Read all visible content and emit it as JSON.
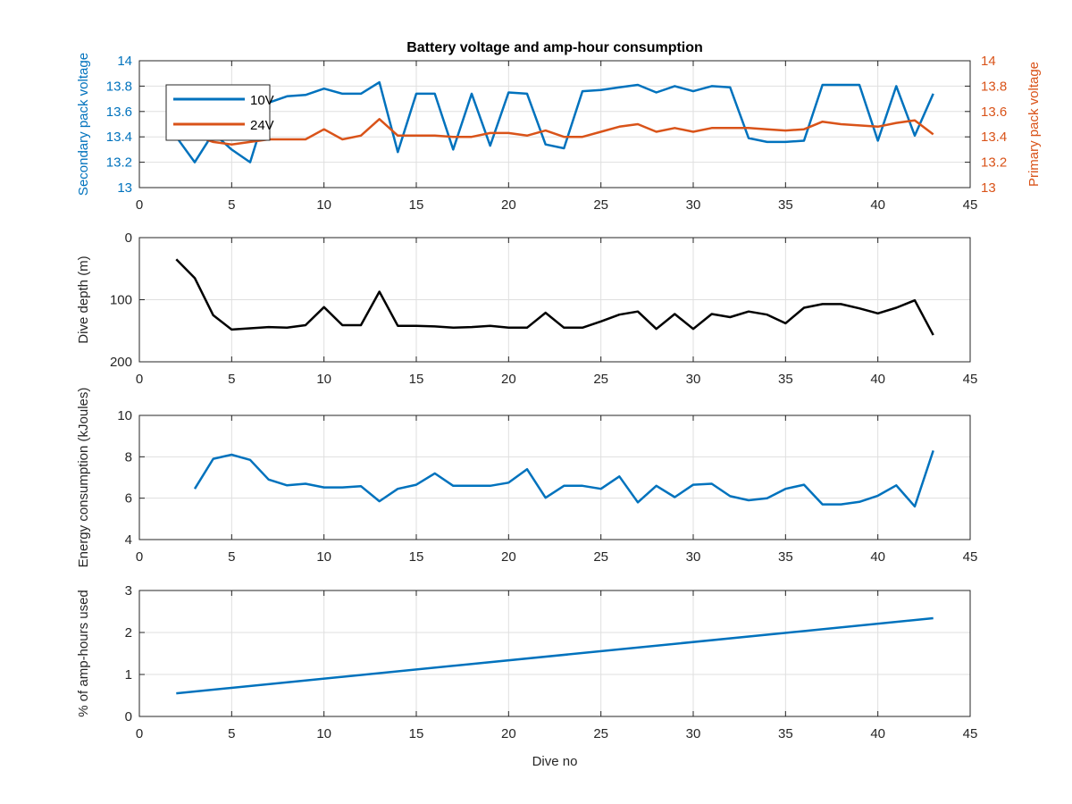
{
  "chart_data": [
    {
      "type": "line",
      "title": "Battery voltage and amp-hour consumption",
      "xlim": [
        0,
        45
      ],
      "xticks": [
        0,
        5,
        10,
        15,
        20,
        25,
        30,
        35,
        40,
        45
      ],
      "grid": true,
      "legend_position": "top-left",
      "left_axis": {
        "ylabel": "Secondary pack voltage",
        "ylim": [
          13,
          14
        ],
        "yticks": [
          13,
          13.2,
          13.4,
          13.6,
          13.8,
          14
        ],
        "color": "#0072bd"
      },
      "right_axis": {
        "ylabel": "Primary pack voltage",
        "ylim": [
          13,
          14
        ],
        "yticks": [
          13,
          13.2,
          13.4,
          13.6,
          13.8,
          14
        ],
        "color": "#d95319"
      },
      "x": [
        2,
        3,
        4,
        5,
        6,
        7,
        8,
        9,
        10,
        11,
        12,
        13,
        14,
        15,
        16,
        17,
        18,
        19,
        20,
        21,
        22,
        23,
        24,
        25,
        26,
        27,
        28,
        29,
        30,
        31,
        32,
        33,
        34,
        35,
        36,
        37,
        38,
        39,
        40,
        41,
        42,
        43
      ],
      "series": [
        {
          "name": "10V",
          "axis": "left",
          "color": "#0072bd",
          "values": [
            13.4,
            13.2,
            13.43,
            13.3,
            13.2,
            13.67,
            13.72,
            13.73,
            13.78,
            13.74,
            13.74,
            13.83,
            13.28,
            13.74,
            13.74,
            13.3,
            13.74,
            13.33,
            13.75,
            13.74,
            13.34,
            13.31,
            13.76,
            13.77,
            13.79,
            13.81,
            13.75,
            13.8,
            13.76,
            13.8,
            13.79,
            13.39,
            13.36,
            13.36,
            13.37,
            13.81,
            13.81,
            13.81,
            13.37,
            13.8,
            13.41,
            13.74
          ]
        },
        {
          "name": "24V",
          "axis": "right",
          "color": "#d95319",
          "values": [
            13.42,
            13.41,
            13.36,
            13.34,
            13.36,
            13.38,
            13.38,
            13.38,
            13.46,
            13.38,
            13.41,
            13.54,
            13.41,
            13.41,
            13.41,
            13.4,
            13.4,
            13.43,
            13.43,
            13.41,
            13.45,
            13.4,
            13.4,
            13.44,
            13.48,
            13.5,
            13.44,
            13.47,
            13.44,
            13.47,
            13.47,
            13.47,
            13.46,
            13.45,
            13.46,
            13.52,
            13.5,
            13.49,
            13.48,
            13.51,
            13.53,
            13.42
          ]
        }
      ]
    },
    {
      "type": "line",
      "title": "",
      "xlabel": "",
      "ylabel": "Dive depth (m)",
      "xlim": [
        0,
        45
      ],
      "xticks": [
        0,
        5,
        10,
        15,
        20,
        25,
        30,
        35,
        40,
        45
      ],
      "ylim": [
        0,
        200
      ],
      "y_reversed": true,
      "yticks": [
        0,
        100,
        200
      ],
      "grid": true,
      "x": [
        2,
        3,
        4,
        5,
        6,
        7,
        8,
        9,
        10,
        11,
        12,
        13,
        14,
        15,
        16,
        17,
        18,
        19,
        20,
        21,
        22,
        23,
        24,
        25,
        26,
        27,
        28,
        29,
        30,
        31,
        32,
        33,
        34,
        35,
        36,
        37,
        38,
        39,
        40,
        41,
        42,
        43
      ],
      "series": [
        {
          "color": "#000000",
          "values": [
            35,
            65,
            125,
            148,
            146,
            144,
            145,
            141,
            112,
            141,
            141,
            87,
            142,
            142,
            143,
            145,
            144,
            142,
            145,
            145,
            121,
            145,
            145,
            135,
            124,
            119,
            147,
            123,
            147,
            123,
            128,
            119,
            124,
            138,
            113,
            107,
            107,
            114,
            122,
            113,
            101,
            157
          ]
        }
      ]
    },
    {
      "type": "line",
      "title": "",
      "xlabel": "",
      "ylabel": "Energy consumption (kJoules)",
      "xlim": [
        0,
        45
      ],
      "xticks": [
        0,
        5,
        10,
        15,
        20,
        25,
        30,
        35,
        40,
        45
      ],
      "ylim": [
        4,
        10
      ],
      "yticks": [
        4,
        6,
        8,
        10
      ],
      "grid": true,
      "x": [
        3,
        4,
        5,
        6,
        7,
        8,
        9,
        10,
        11,
        12,
        13,
        14,
        15,
        16,
        17,
        18,
        19,
        20,
        21,
        22,
        23,
        24,
        25,
        26,
        27,
        28,
        29,
        30,
        31,
        32,
        33,
        34,
        35,
        36,
        37,
        38,
        39,
        40,
        41,
        42,
        43
      ],
      "series": [
        {
          "color": "#0072bd",
          "values": [
            6.45,
            7.9,
            8.1,
            7.85,
            6.9,
            6.62,
            6.7,
            6.52,
            6.52,
            6.58,
            5.85,
            6.45,
            6.65,
            7.2,
            6.6,
            6.6,
            6.6,
            6.75,
            7.4,
            6.02,
            6.6,
            6.6,
            6.45,
            7.05,
            5.8,
            6.6,
            6.05,
            6.65,
            6.7,
            6.1,
            5.9,
            6.0,
            6.45,
            6.65,
            5.7,
            5.7,
            5.82,
            6.12,
            6.62,
            5.6,
            8.3
          ]
        }
      ]
    },
    {
      "type": "line",
      "title": "",
      "xlabel": "Dive no",
      "ylabel": "% of amp-hours used",
      "xlim": [
        0,
        45
      ],
      "xticks": [
        0,
        5,
        10,
        15,
        20,
        25,
        30,
        35,
        40,
        45
      ],
      "ylim": [
        0,
        3
      ],
      "yticks": [
        0,
        1,
        2,
        3
      ],
      "grid": true,
      "x": [
        2,
        43
      ],
      "series": [
        {
          "color": "#0072bd",
          "values": [
            0.55,
            2.34
          ]
        }
      ]
    }
  ]
}
